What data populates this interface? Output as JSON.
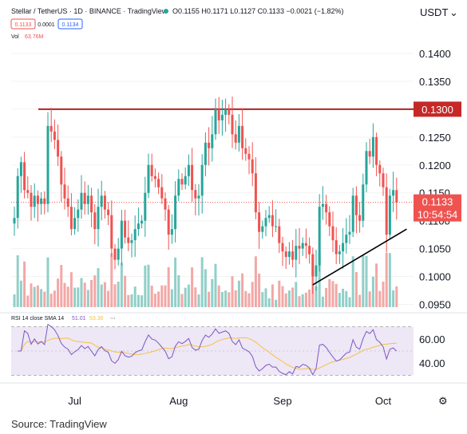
{
  "header": {
    "symbol": "Stellar / TetherUS · 1D · BINANCE · TradingView",
    "ohlc": "O0.1155 H0.1171 L0.1127 C0.1133 −0.0021 (−1.82%)",
    "price_box_1": "0.1133",
    "price_box_2": "0.0001",
    "price_box_3": "0.1134",
    "vol_label": "Vol",
    "vol_value": "63.76M"
  },
  "axis": {
    "currency": "USDT",
    "ticks": [
      "0.1400",
      "0.1350",
      "0.1300",
      "0.1250",
      "0.1200",
      "0.1150",
      "0.1100",
      "0.1050",
      "0.1000",
      "0.0950"
    ],
    "resistance_label": "0.1300",
    "last_price_label": "0.1133",
    "countdown_label": "10:54:54"
  },
  "rsi": {
    "legend": "RSI 14 close SMA 14",
    "value_1": "51.01",
    "value_2": "53.36",
    "ticks": [
      "60.00",
      "40.00"
    ]
  },
  "dates": [
    "Jul",
    "Aug",
    "Sep",
    "Oct"
  ],
  "source": "Source: TradingView",
  "colors": {
    "up": "#26a69a",
    "down": "#ef5350",
    "resistance": "#b22222",
    "rsi_line": "#7e57c2",
    "rsi_sma": "#f5c242"
  },
  "chart_data": {
    "type": "candlestick",
    "resistance": 0.13,
    "last_price": 0.1133,
    "ylim": [
      0.0945,
      0.141
    ],
    "rsi_ylim": [
      25,
      75
    ],
    "rsi_band": [
      30,
      70
    ],
    "x_ticks": [
      {
        "label": "Jul",
        "index": 18
      },
      {
        "label": "Aug",
        "index": 49
      },
      {
        "label": "Sep",
        "index": 80
      },
      {
        "label": "Oct",
        "index": 110
      }
    ],
    "trendline": [
      {
        "index": 89,
        "price": 0.0985
      },
      {
        "index": 117,
        "price": 0.1085
      }
    ],
    "closes": [
      0.1105,
      0.118,
      0.1205,
      0.1155,
      0.115,
      0.1125,
      0.1145,
      0.113,
      0.114,
      0.113,
      0.127,
      0.126,
      0.1245,
      0.1215,
      0.1165,
      0.114,
      0.1125,
      0.1085,
      0.1105,
      0.112,
      0.115,
      0.113,
      0.1145,
      0.1115,
      0.1085,
      0.1125,
      0.1145,
      0.112,
      0.111,
      0.105,
      0.103,
      0.105,
      0.11,
      0.107,
      0.106,
      0.1065,
      0.1085,
      0.1095,
      0.11,
      0.115,
      0.12,
      0.118,
      0.1175,
      0.116,
      0.114,
      0.112,
      0.1075,
      0.1085,
      0.1145,
      0.1175,
      0.1165,
      0.118,
      0.12,
      0.1155,
      0.114,
      0.1145,
      0.12,
      0.124,
      0.123,
      0.1255,
      0.13,
      0.128,
      0.129,
      0.13,
      0.129,
      0.1255,
      0.124,
      0.127,
      0.123,
      0.122,
      0.121,
      0.1185,
      0.1115,
      0.108,
      0.109,
      0.1105,
      0.111,
      0.109,
      0.109,
      0.106,
      0.1045,
      0.1035,
      0.1045,
      0.103,
      0.1055,
      0.105,
      0.106,
      0.1055,
      0.104,
      0.1,
      0.102,
      0.1125,
      0.113,
      0.1115,
      0.109,
      0.1065,
      0.104,
      0.1045,
      0.106,
      0.1075,
      0.108,
      0.1145,
      0.111,
      0.11,
      0.1165,
      0.1225,
      0.1215,
      0.125,
      0.12,
      0.1185,
      0.116,
      0.1075,
      0.1145,
      0.1155,
      0.1133
    ]
  }
}
